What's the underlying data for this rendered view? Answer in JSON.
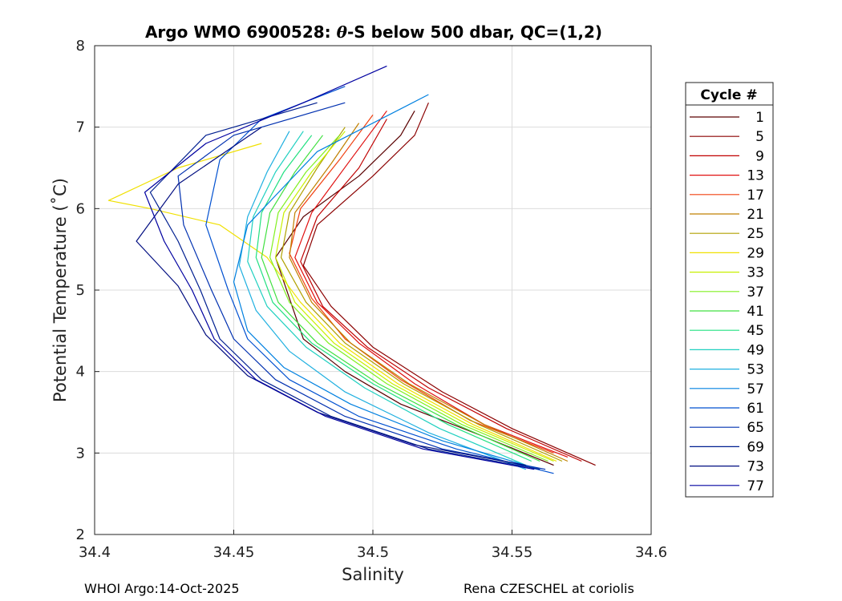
{
  "chart_data": {
    "type": "line",
    "title": "Argo WMO 6900528: θ-S below 500 dbar,  QC=(1,2)",
    "title_prefix": "Argo WMO 6900528: ",
    "title_symbol": "θ",
    "title_suffix": "-S below 500 dbar,  QC=(1,2)",
    "xlabel": "Salinity",
    "ylabel": "Potential Temperature (˚C)",
    "xlim": [
      34.4,
      34.6
    ],
    "ylim": [
      2,
      8
    ],
    "xticks": [
      "34.4",
      "34.45",
      "34.5",
      "34.55",
      "34.6"
    ],
    "yticks": [
      "2",
      "3",
      "4",
      "5",
      "6",
      "7",
      "8"
    ],
    "grid": true,
    "legend": {
      "title": "Cycle #",
      "position": "right",
      "entries": [
        "1",
        "5",
        "9",
        "13",
        "17",
        "21",
        "25",
        "29",
        "33",
        "37",
        "41",
        "45",
        "49",
        "53",
        "57",
        "61",
        "65",
        "69",
        "73",
        "77"
      ],
      "colors": [
        "#5a0000",
        "#8b0000",
        "#c00000",
        "#e01010",
        "#f04010",
        "#c08000",
        "#b0a000",
        "#f0e000",
        "#c8f000",
        "#80f020",
        "#40e040",
        "#20e080",
        "#20d0c0",
        "#20b0e0",
        "#0080e0",
        "#0050d0",
        "#0030b0",
        "#001f90",
        "#000d80",
        "#0000a0"
      ]
    },
    "series": [
      {
        "name": "1",
        "color": "#5a0000",
        "x": [
          34.565,
          34.54,
          34.51,
          34.49,
          34.475,
          34.47,
          34.465,
          34.475,
          34.495,
          34.51,
          34.515
        ],
        "y": [
          2.85,
          3.2,
          3.6,
          4.0,
          4.4,
          4.9,
          5.4,
          5.9,
          6.4,
          6.9,
          7.2
        ]
      },
      {
        "name": "5",
        "color": "#8b0000",
        "x": [
          34.58,
          34.55,
          34.525,
          34.5,
          34.485,
          34.475,
          34.48,
          34.5,
          34.515,
          34.52
        ],
        "y": [
          2.85,
          3.3,
          3.75,
          4.3,
          4.8,
          5.3,
          5.8,
          6.4,
          6.9,
          7.3
        ]
      },
      {
        "name": "9",
        "color": "#c00000",
        "x": [
          34.575,
          34.548,
          34.52,
          34.498,
          34.482,
          34.474,
          34.48,
          34.495,
          34.505
        ],
        "y": [
          2.9,
          3.3,
          3.8,
          4.3,
          4.8,
          5.35,
          5.9,
          6.5,
          7.1
        ]
      },
      {
        "name": "13",
        "color": "#e01010",
        "x": [
          34.57,
          34.54,
          34.515,
          34.495,
          34.48,
          34.472,
          34.478,
          34.492,
          34.505
        ],
        "y": [
          2.95,
          3.35,
          3.85,
          4.35,
          4.85,
          5.4,
          5.95,
          6.6,
          7.2
        ]
      },
      {
        "name": "17",
        "color": "#f04010",
        "x": [
          34.565,
          34.535,
          34.51,
          34.49,
          34.478,
          34.47,
          34.474,
          34.488,
          34.5
        ],
        "y": [
          3.0,
          3.4,
          3.9,
          4.4,
          4.9,
          5.45,
          6.0,
          6.6,
          7.15
        ]
      },
      {
        "name": "21",
        "color": "#c08000",
        "x": [
          34.57,
          34.54,
          34.513,
          34.492,
          34.478,
          34.47,
          34.472,
          34.485,
          34.495
        ],
        "y": [
          2.9,
          3.35,
          3.85,
          4.35,
          4.85,
          5.4,
          5.95,
          6.55,
          7.05
        ]
      },
      {
        "name": "25",
        "color": "#b0a000",
        "x": [
          34.568,
          34.538,
          34.511,
          34.49,
          34.476,
          34.467,
          34.47,
          34.48,
          34.49
        ],
        "y": [
          2.9,
          3.35,
          3.85,
          4.35,
          4.85,
          5.4,
          5.95,
          6.5,
          7.0
        ]
      },
      {
        "name": "29",
        "color": "#f0e000",
        "x": [
          34.566,
          34.536,
          34.509,
          34.488,
          34.474,
          34.462,
          34.445,
          34.42,
          34.405,
          34.43,
          34.46
        ],
        "y": [
          2.9,
          3.35,
          3.85,
          4.35,
          4.85,
          5.4,
          5.8,
          6.0,
          6.1,
          6.5,
          6.8
        ]
      },
      {
        "name": "33",
        "color": "#c8f000",
        "x": [
          34.565,
          34.534,
          34.507,
          34.486,
          34.472,
          34.465,
          34.468,
          34.478,
          34.49
        ],
        "y": [
          2.9,
          3.35,
          3.85,
          4.35,
          4.85,
          5.4,
          5.95,
          6.45,
          6.95
        ]
      },
      {
        "name": "37",
        "color": "#80f020",
        "x": [
          34.563,
          34.532,
          34.505,
          34.484,
          34.47,
          34.463,
          34.466,
          34.476,
          34.488
        ],
        "y": [
          2.9,
          3.35,
          3.85,
          4.35,
          4.85,
          5.4,
          5.95,
          6.45,
          6.9
        ]
      },
      {
        "name": "41",
        "color": "#40e040",
        "x": [
          34.56,
          34.53,
          34.502,
          34.48,
          34.466,
          34.46,
          34.463,
          34.472,
          34.482
        ],
        "y": [
          2.9,
          3.35,
          3.85,
          4.35,
          4.85,
          5.4,
          5.95,
          6.45,
          6.9
        ]
      },
      {
        "name": "45",
        "color": "#20e080",
        "x": [
          34.557,
          34.527,
          34.5,
          34.478,
          34.464,
          34.458,
          34.46,
          34.468,
          34.478
        ],
        "y": [
          2.9,
          3.35,
          3.85,
          4.35,
          4.85,
          5.4,
          5.95,
          6.45,
          6.9
        ]
      },
      {
        "name": "49",
        "color": "#20d0c0",
        "x": [
          34.555,
          34.524,
          34.497,
          34.476,
          34.462,
          34.455,
          34.457,
          34.465,
          34.475
        ],
        "y": [
          2.85,
          3.3,
          3.8,
          4.3,
          4.8,
          5.35,
          5.9,
          6.45,
          6.95
        ]
      },
      {
        "name": "53",
        "color": "#20b0e0",
        "x": [
          34.555,
          34.52,
          34.49,
          34.47,
          34.458,
          34.452,
          34.455,
          34.462,
          34.47
        ],
        "y": [
          2.8,
          3.25,
          3.75,
          4.25,
          4.75,
          5.3,
          5.9,
          6.45,
          6.95
        ]
      },
      {
        "name": "57",
        "color": "#0080e0",
        "x": [
          34.56,
          34.525,
          34.492,
          34.468,
          34.455,
          34.45,
          34.455,
          34.48,
          34.52
        ],
        "y": [
          2.8,
          3.15,
          3.6,
          4.05,
          4.5,
          5.1,
          5.8,
          6.7,
          7.4
        ]
      },
      {
        "name": "61",
        "color": "#0050d0",
        "x": [
          34.565,
          34.53,
          34.495,
          34.47,
          34.455,
          34.448,
          34.44,
          34.445,
          34.46,
          34.49
        ],
        "y": [
          2.75,
          3.05,
          3.45,
          3.9,
          4.4,
          5.0,
          5.8,
          6.6,
          7.1,
          7.5
        ]
      },
      {
        "name": "65",
        "color": "#0030b0",
        "x": [
          34.562,
          34.525,
          34.49,
          34.465,
          34.45,
          34.442,
          34.432,
          34.43,
          34.45,
          34.49
        ],
        "y": [
          2.8,
          3.05,
          3.45,
          3.9,
          4.4,
          5.0,
          5.8,
          6.4,
          6.9,
          7.3
        ]
      },
      {
        "name": "69",
        "color": "#001f90",
        "x": [
          34.56,
          34.52,
          34.485,
          34.46,
          34.445,
          34.438,
          34.43,
          34.42,
          34.44,
          34.48
        ],
        "y": [
          2.8,
          3.05,
          3.45,
          3.9,
          4.4,
          5.0,
          5.6,
          6.2,
          6.9,
          7.3
        ]
      },
      {
        "name": "73",
        "color": "#000d80",
        "x": [
          34.555,
          34.515,
          34.48,
          34.455,
          34.44,
          34.43,
          34.415,
          34.43,
          34.46
        ],
        "y": [
          2.85,
          3.1,
          3.5,
          3.95,
          4.45,
          5.05,
          5.6,
          6.3,
          7.0
        ]
      },
      {
        "name": "77",
        "color": "#0000a0",
        "x": [
          34.558,
          34.518,
          34.483,
          34.458,
          34.443,
          34.435,
          34.425,
          34.418,
          34.44,
          34.475,
          34.505
        ],
        "y": [
          2.8,
          3.05,
          3.45,
          3.9,
          4.4,
          5.0,
          5.6,
          6.2,
          6.8,
          7.3,
          7.75
        ]
      }
    ]
  },
  "footer": {
    "left": "WHOI Argo:14-Oct-2025",
    "right": "Rena CZESCHEL at coriolis"
  }
}
